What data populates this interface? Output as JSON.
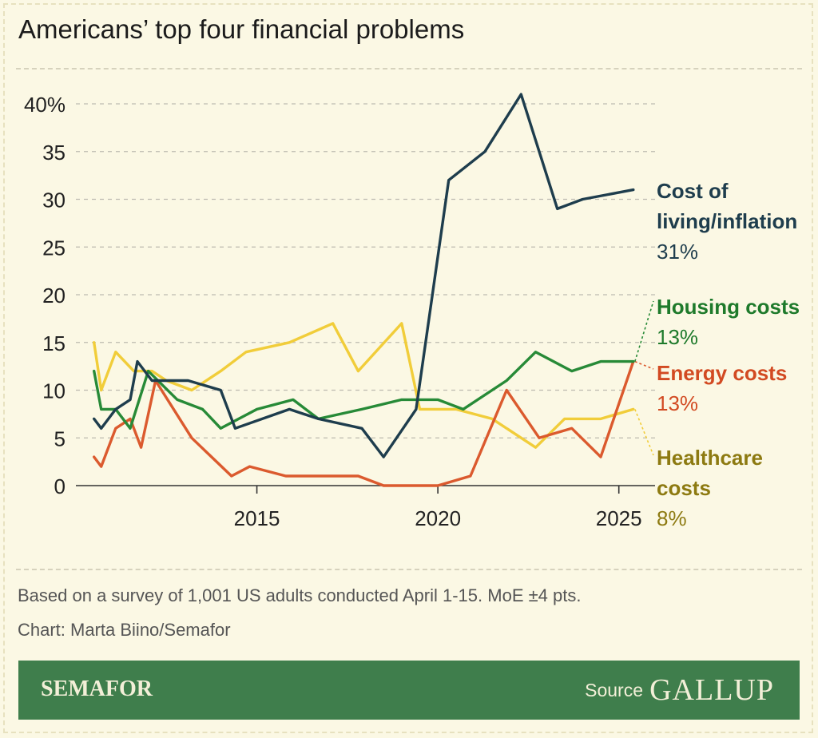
{
  "header": {
    "title": "Americans’ top four financial problems"
  },
  "chart_data": {
    "type": "line",
    "title": "Americans’ top four financial problems",
    "xlabel": "",
    "ylabel": "",
    "xlim": [
      2010,
      2026
    ],
    "ylim": [
      0,
      40
    ],
    "y_ticks": [
      {
        "value": 0,
        "label": "0"
      },
      {
        "value": 5,
        "label": "5"
      },
      {
        "value": 10,
        "label": "10"
      },
      {
        "value": 15,
        "label": "15"
      },
      {
        "value": 20,
        "label": "20"
      },
      {
        "value": 25,
        "label": "25"
      },
      {
        "value": 30,
        "label": "30"
      },
      {
        "value": 35,
        "label": "35"
      },
      {
        "value": 40,
        "label": "40%"
      }
    ],
    "x_ticks": [
      {
        "value": 2015,
        "label": "2015"
      },
      {
        "value": 2020,
        "label": "2020"
      },
      {
        "value": 2025,
        "label": "2025"
      }
    ],
    "grid": true,
    "series": [
      {
        "name": "Healthcare costs",
        "label_lines": [
          "Healthcare",
          "costs"
        ],
        "value_label": "8%",
        "color": "#f1cd3a",
        "text_color": "#8d7a11",
        "points": [
          [
            2010.5,
            15
          ],
          [
            2010.7,
            10
          ],
          [
            2011.1,
            14
          ],
          [
            2011.6,
            12
          ],
          [
            2012.1,
            12
          ],
          [
            2012.5,
            11
          ],
          [
            2013.2,
            10
          ],
          [
            2014.0,
            12
          ],
          [
            2014.7,
            14
          ],
          [
            2015.9,
            15
          ],
          [
            2017.1,
            17
          ],
          [
            2017.8,
            12
          ],
          [
            2019.0,
            17
          ],
          [
            2019.5,
            8
          ],
          [
            2020.5,
            8
          ],
          [
            2021.5,
            7
          ],
          [
            2022.7,
            4
          ],
          [
            2023.5,
            7
          ],
          [
            2024.5,
            7
          ],
          [
            2025.4,
            8
          ]
        ]
      },
      {
        "name": "Energy costs",
        "label_lines": [
          "Energy costs"
        ],
        "value_label": "13%",
        "color": "#db5a2e",
        "text_color": "#d24a22",
        "points": [
          [
            2010.5,
            3
          ],
          [
            2010.7,
            2
          ],
          [
            2011.1,
            6
          ],
          [
            2011.5,
            7
          ],
          [
            2011.8,
            4
          ],
          [
            2012.2,
            11
          ],
          [
            2013.2,
            5
          ],
          [
            2014.3,
            1
          ],
          [
            2014.8,
            2
          ],
          [
            2015.8,
            1
          ],
          [
            2017.0,
            1
          ],
          [
            2017.8,
            1
          ],
          [
            2018.5,
            0
          ],
          [
            2019.4,
            0
          ],
          [
            2020.0,
            0
          ],
          [
            2020.9,
            1
          ],
          [
            2021.9,
            10
          ],
          [
            2022.8,
            5
          ],
          [
            2023.7,
            6
          ],
          [
            2024.5,
            3
          ],
          [
            2025.4,
            13
          ]
        ]
      },
      {
        "name": "Housing costs",
        "label_lines": [
          "Housing costs"
        ],
        "value_label": "13%",
        "color": "#278a37",
        "text_color": "#1e7a2b",
        "points": [
          [
            2010.5,
            12
          ],
          [
            2010.7,
            8
          ],
          [
            2011.1,
            8
          ],
          [
            2011.5,
            6
          ],
          [
            2012.0,
            12
          ],
          [
            2012.8,
            9
          ],
          [
            2013.5,
            8
          ],
          [
            2014.0,
            6
          ],
          [
            2015.0,
            8
          ],
          [
            2016.0,
            9
          ],
          [
            2016.7,
            7
          ],
          [
            2017.9,
            8
          ],
          [
            2019.0,
            9
          ],
          [
            2020.0,
            9
          ],
          [
            2020.7,
            8
          ],
          [
            2021.9,
            11
          ],
          [
            2022.7,
            14
          ],
          [
            2023.7,
            12
          ],
          [
            2024.5,
            13
          ],
          [
            2025.4,
            13
          ]
        ]
      },
      {
        "name": "Cost of living/inflation",
        "label_lines": [
          "Cost of",
          "living/inflation"
        ],
        "value_label": "31%",
        "color": "#1e3d4d",
        "text_color": "#1e3d4d",
        "points": [
          [
            2010.5,
            7
          ],
          [
            2010.7,
            6
          ],
          [
            2011.1,
            8
          ],
          [
            2011.5,
            9
          ],
          [
            2011.7,
            13
          ],
          [
            2012.1,
            11
          ],
          [
            2013.1,
            11
          ],
          [
            2014.0,
            10
          ],
          [
            2014.4,
            6
          ],
          [
            2015.9,
            8
          ],
          [
            2016.7,
            7
          ],
          [
            2017.9,
            6
          ],
          [
            2018.5,
            3
          ],
          [
            2019.4,
            8
          ],
          [
            2020.3,
            32
          ],
          [
            2021.3,
            35
          ],
          [
            2022.3,
            41
          ],
          [
            2023.3,
            29
          ],
          [
            2024.0,
            30
          ],
          [
            2025.4,
            31
          ]
        ]
      }
    ]
  },
  "notes": {
    "survey": "Based on a survey of 1,001 US adults conducted April 1-15. MoE ±4 pts.",
    "credit": "Chart: Marta Biino/Semafor"
  },
  "footer": {
    "brand": "SEMAFOR",
    "source_label": "Source",
    "source_brand": "GALLUP",
    "background_color": "#3f7e4c"
  }
}
